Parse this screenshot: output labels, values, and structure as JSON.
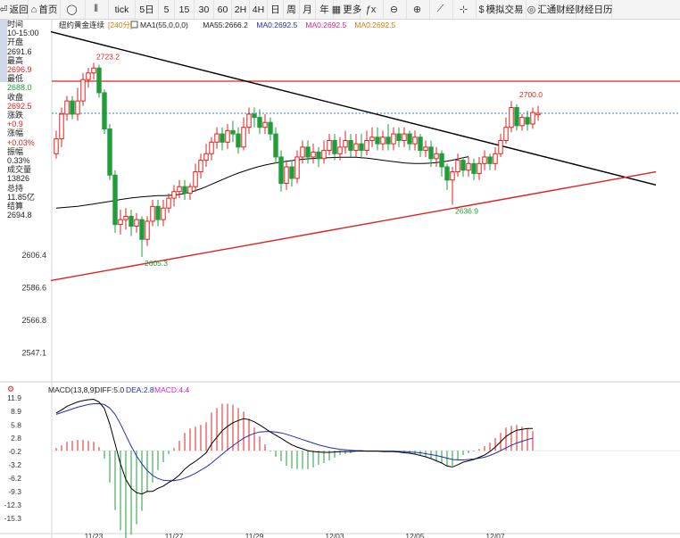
{
  "toolbar": {
    "items": [
      {
        "label": "返回",
        "icon": "back-arrow-icon"
      },
      {
        "label": "首页",
        "icon": "home-icon"
      },
      {
        "label": "",
        "icon": "refresh-circle-icon"
      },
      {
        "label": "",
        "icon": "candlestick-icon"
      },
      {
        "label": "tick",
        "icon": ""
      },
      {
        "label": "5日",
        "icon": ""
      },
      {
        "label": "5",
        "icon": ""
      },
      {
        "label": "15",
        "icon": ""
      },
      {
        "label": "30",
        "icon": ""
      },
      {
        "label": "60",
        "icon": ""
      },
      {
        "label": "2H",
        "icon": ""
      },
      {
        "label": "4H",
        "icon": ""
      },
      {
        "label": "日",
        "icon": ""
      },
      {
        "label": "周",
        "icon": ""
      },
      {
        "label": "月",
        "icon": ""
      },
      {
        "label": "年",
        "icon": ""
      },
      {
        "label": "更多",
        "icon": "grid-icon"
      },
      {
        "label": "",
        "icon": "function-icon"
      },
      {
        "label": "",
        "icon": "zoom-out-icon"
      },
      {
        "label": "",
        "icon": "zoom-in-icon"
      },
      {
        "label": "",
        "icon": "draw-line-icon"
      },
      {
        "label": "",
        "icon": "crosshair-icon"
      },
      {
        "label": "模拟交易",
        "icon": "dollar-icon"
      },
      {
        "label": "汇通财经",
        "icon": "globe-icon"
      },
      {
        "label": "财经日历",
        "icon": ""
      }
    ]
  },
  "side_panel": [
    {
      "label": "时间",
      "value": "10-15:00",
      "color": "#222"
    },
    {
      "label": "开盘",
      "value": "2691.6",
      "color": "#222"
    },
    {
      "label": "最高",
      "value": "2696.9",
      "color": "#e02020"
    },
    {
      "label": "最低",
      "value": "2688.0",
      "color": "#1f9d3a"
    },
    {
      "label": "收盘",
      "value": "2692.5",
      "color": "#e02020"
    },
    {
      "label": "涨跌",
      "value": "+0.9",
      "color": "#e02020"
    },
    {
      "label": "涨幅",
      "value": "+0.03%",
      "color": "#e02020"
    },
    {
      "label": "振幅",
      "value": "0.33%",
      "color": "#222"
    },
    {
      "label": "成交量",
      "value": "13826",
      "color": "#222"
    },
    {
      "label": "总持",
      "value": "11.85亿",
      "color": "#222"
    },
    {
      "label": "结算",
      "value": "2694.8",
      "color": "#222"
    }
  ],
  "legend": {
    "symbol": "纽约黄金连续",
    "period": "[240分]",
    "ma1": "MA1(55,0,0,0)",
    "ma55": "MA55:2666.2",
    "ma0a": "MA0:2692.5",
    "ma0b": "MA0:2692.5",
    "ma0c": "MA0:2692.5"
  },
  "macd_legend": {
    "title": "MACD(13,8,9)",
    "diff": "DIFF:5.0",
    "dea": "DEA:2.8",
    "macd": "MACD:4.4"
  },
  "colors": {
    "up": "#e02020",
    "down": "#1f9d3a",
    "ma": "#000000",
    "resistance": "#e02020",
    "trendline_down": "#000000",
    "trendline_up": "#e02020",
    "diff": "#000000",
    "dea": "#1f2fb0",
    "last_price": "#3a78d8"
  },
  "chart_data": {
    "type": "candlestick",
    "price_axis": {
      "ticks": [
        2606.4,
        2586.6,
        2566.8,
        2547.1
      ]
    },
    "x_labels": [
      {
        "label": "11/23",
        "index": 7
      },
      {
        "label": "11/27",
        "index": 22
      },
      {
        "label": "11/29",
        "index": 37
      },
      {
        "label": "12/03",
        "index": 52
      },
      {
        "label": "12/05",
        "index": 67
      },
      {
        "label": "12/07",
        "index": 82
      }
    ],
    "annotations": [
      {
        "text": "2723.2",
        "index": 7,
        "value": 2723.2,
        "type": "high"
      },
      {
        "text": "2605.3",
        "index": 16,
        "value": 2605.3,
        "type": "low"
      },
      {
        "text": "2636.9",
        "index": 74,
        "value": 2636.9,
        "type": "low"
      },
      {
        "text": "2700.0",
        "index": 86,
        "value": 2700.0,
        "type": "high"
      }
    ],
    "resistance_level": 2712.0,
    "last_price": 2692.5,
    "trendlines": [
      {
        "name": "down",
        "from": {
          "index": -1,
          "value": 2742
        },
        "to": {
          "index": 112,
          "value": 2649
        }
      },
      {
        "name": "up",
        "from": {
          "index": -1,
          "value": 2591
        },
        "to": {
          "index": 112,
          "value": 2657
        }
      }
    ],
    "candles": [
      [
        2668,
        2677,
        2665,
        2682
      ],
      [
        2677,
        2692,
        2672,
        2696
      ],
      [
        2692,
        2700,
        2688,
        2703
      ],
      [
        2700,
        2692,
        2689,
        2703
      ],
      [
        2692,
        2700,
        2688,
        2708
      ],
      [
        2700,
        2713,
        2697,
        2717
      ],
      [
        2713,
        2717,
        2708,
        2720
      ],
      [
        2717,
        2720,
        2713,
        2723.2
      ],
      [
        2720,
        2705,
        2702,
        2722
      ],
      [
        2705,
        2683,
        2680,
        2707
      ],
      [
        2683,
        2655,
        2652,
        2686
      ],
      [
        2655,
        2625,
        2620,
        2658
      ],
      [
        2625,
        2628,
        2619,
        2634
      ],
      [
        2628,
        2630,
        2622,
        2635
      ],
      [
        2630,
        2624,
        2618,
        2634
      ],
      [
        2624,
        2628,
        2620,
        2632
      ],
      [
        2628,
        2616,
        2605.3,
        2630
      ],
      [
        2616,
        2627,
        2612,
        2630
      ],
      [
        2627,
        2636,
        2624,
        2640
      ],
      [
        2636,
        2628,
        2624,
        2640
      ],
      [
        2628,
        2635,
        2624,
        2640
      ],
      [
        2635,
        2641,
        2632,
        2644
      ],
      [
        2641,
        2645,
        2636,
        2649
      ],
      [
        2645,
        2648,
        2641,
        2652
      ],
      [
        2648,
        2644,
        2640,
        2652
      ],
      [
        2644,
        2648,
        2640,
        2650
      ],
      [
        2648,
        2657,
        2645,
        2662
      ],
      [
        2657,
        2664,
        2653,
        2668
      ],
      [
        2664,
        2668,
        2660,
        2674
      ],
      [
        2668,
        2675,
        2664,
        2678
      ],
      [
        2675,
        2680,
        2671,
        2684
      ],
      [
        2680,
        2675,
        2670,
        2684
      ],
      [
        2675,
        2682,
        2671,
        2686
      ],
      [
        2682,
        2680,
        2675,
        2688
      ],
      [
        2680,
        2672,
        2668,
        2684
      ],
      [
        2672,
        2684,
        2670,
        2690
      ],
      [
        2684,
        2692,
        2680,
        2696
      ],
      [
        2692,
        2690,
        2684,
        2696
      ],
      [
        2690,
        2684,
        2680,
        2695
      ],
      [
        2684,
        2687,
        2680,
        2692
      ],
      [
        2687,
        2680,
        2676,
        2690
      ],
      [
        2680,
        2666,
        2662,
        2684
      ],
      [
        2666,
        2650,
        2645,
        2670
      ],
      [
        2650,
        2660,
        2646,
        2664
      ],
      [
        2660,
        2653,
        2648,
        2664
      ],
      [
        2653,
        2666,
        2650,
        2670
      ],
      [
        2666,
        2672,
        2662,
        2676
      ],
      [
        2672,
        2666,
        2662,
        2676
      ],
      [
        2666,
        2669,
        2662,
        2674
      ],
      [
        2669,
        2665,
        2660,
        2672
      ],
      [
        2665,
        2670,
        2662,
        2676
      ],
      [
        2670,
        2676,
        2667,
        2680
      ],
      [
        2676,
        2668,
        2664,
        2680
      ],
      [
        2668,
        2672,
        2664,
        2678
      ],
      [
        2672,
        2676,
        2668,
        2682
      ],
      [
        2676,
        2670,
        2666,
        2680
      ],
      [
        2670,
        2674,
        2666,
        2680
      ],
      [
        2674,
        2670,
        2665,
        2680
      ],
      [
        2670,
        2676,
        2667,
        2682
      ],
      [
        2676,
        2678,
        2672,
        2684
      ],
      [
        2678,
        2674,
        2670,
        2684
      ],
      [
        2674,
        2678,
        2670,
        2682
      ],
      [
        2678,
        2674,
        2670,
        2686
      ],
      [
        2674,
        2680,
        2670,
        2684
      ],
      [
        2680,
        2676,
        2672,
        2684
      ],
      [
        2676,
        2680,
        2672,
        2684
      ],
      [
        2680,
        2674,
        2670,
        2682
      ],
      [
        2674,
        2678,
        2670,
        2682
      ],
      [
        2678,
        2670,
        2666,
        2680
      ],
      [
        2670,
        2672,
        2666,
        2676
      ],
      [
        2672,
        2665,
        2660,
        2676
      ],
      [
        2665,
        2668,
        2660,
        2672
      ],
      [
        2668,
        2660,
        2654,
        2670
      ],
      [
        2660,
        2652,
        2646,
        2662
      ],
      [
        2652,
        2657,
        2636.9,
        2660
      ],
      [
        2657,
        2664,
        2654,
        2668
      ],
      [
        2664,
        2658,
        2654,
        2666
      ],
      [
        2658,
        2662,
        2654,
        2666
      ],
      [
        2662,
        2656,
        2652,
        2665
      ],
      [
        2656,
        2662,
        2652,
        2666
      ],
      [
        2662,
        2666,
        2658,
        2670
      ],
      [
        2666,
        2662,
        2658,
        2668
      ],
      [
        2662,
        2668,
        2658,
        2672
      ],
      [
        2668,
        2676,
        2666,
        2680
      ],
      [
        2676,
        2684,
        2674,
        2690
      ],
      [
        2684,
        2696,
        2681,
        2700.0
      ],
      [
        2696,
        2685,
        2682,
        2698
      ],
      [
        2685,
        2690,
        2682,
        2692
      ],
      [
        2690,
        2686,
        2682,
        2694
      ],
      [
        2686,
        2693,
        2683,
        2696
      ],
      [
        2691.6,
        2692.5,
        2688,
        2696.9
      ]
    ],
    "ma55": [
      2635,
      2635.2,
      2635.5,
      2635.8,
      2636.1,
      2636.5,
      2637,
      2637.5,
      2638,
      2638.5,
      2639,
      2639.6,
      2640.2,
      2640.7,
      2641.1,
      2641.5,
      2641.8,
      2642.1,
      2642.3,
      2642.5,
      2642.6,
      2642.7,
      2642.9,
      2643.3,
      2643.8,
      2644.6,
      2645.6,
      2646.7,
      2648,
      2649.4,
      2650.8,
      2652.2,
      2653.6,
      2655,
      2656.2,
      2657.3,
      2658.4,
      2659.4,
      2660.3,
      2661.1,
      2661.8,
      2662.4,
      2662.9,
      2663.4,
      2663.8,
      2664.2,
      2664.6,
      2664.9,
      2665.1,
      2665.3,
      2665.5,
      2665.6,
      2665.7,
      2665.8,
      2665.8,
      2665.8,
      2665.8,
      2665.6,
      2665.3,
      2664.9,
      2664.5,
      2664,
      2663.6,
      2663.2,
      2662.8,
      2662.4,
      2662.2,
      2662,
      2662,
      2662.1,
      2662.3,
      2662.6,
      2663,
      2663.5,
      2664.1,
      2664.8,
      2665.6,
      2666.2
    ],
    "ma55_start_index": 12,
    "macd": {
      "axis_ticks": [
        11.9,
        8.9,
        5.8,
        2.8,
        -0.2,
        -3.2,
        -6.2,
        -9.3,
        -12.3,
        -15.3
      ],
      "diff": [
        8.5,
        9.2,
        10,
        10.5,
        11,
        11.3,
        11.5,
        11.6,
        11,
        9.5,
        6,
        1.5,
        -3,
        -6.5,
        -8.5,
        -9.5,
        -9.8,
        -9.2,
        -9.2,
        -8.5,
        -8,
        -7.2,
        -6.5,
        -5.5,
        -4.2,
        -3.2,
        -2.4,
        -1.5,
        -0.5,
        1.5,
        3,
        4.5,
        5.5,
        6.3,
        6.8,
        7.2,
        7.0,
        6.5,
        5.8,
        5.0,
        4.2,
        3.5,
        2.8,
        2.0,
        1.3,
        0.8,
        0.4,
        0,
        -0.2,
        -0.3,
        -0.4,
        -0.4,
        -0.3,
        -0.2,
        -0.2,
        -0.2,
        -0.1,
        -0.1,
        -0.1,
        -0.1,
        -0.1,
        -0.2,
        -0.2,
        -0.2,
        -0.3,
        -0.5,
        -0.6,
        -0.8,
        -1.1,
        -1.4,
        -1.8,
        -2.3,
        -2.8,
        -3.5,
        -3.7,
        -3.2,
        -2.6,
        -2.3,
        -2.0,
        -1.5,
        -1.0,
        -0.2,
        0.8,
        2.0,
        3.2,
        4.0,
        4.6,
        4.8,
        5.0,
        5.0
      ],
      "dea": [
        8.2,
        8.6,
        9,
        9.4,
        9.8,
        10.1,
        10.4,
        10.6,
        10.6,
        10.4,
        9.6,
        8.2,
        6,
        3.5,
        1,
        -1.2,
        -3,
        -4.5,
        -5.6,
        -6.3,
        -6.7,
        -6.8,
        -6.8,
        -6.6,
        -6.2,
        -5.7,
        -5.1,
        -4.4,
        -3.7,
        -2.8,
        -1.8,
        -0.8,
        0.2,
        1.1,
        2.0,
        2.8,
        3.4,
        3.9,
        4.2,
        4.3,
        4.3,
        4.2,
        4.0,
        3.7,
        3.3,
        2.9,
        2.5,
        2.1,
        1.7,
        1.3,
        1.0,
        0.7,
        0.5,
        0.3,
        0.2,
        0.1,
        0,
        0,
        -0.1,
        -0.1,
        -0.1,
        -0.1,
        -0.1,
        -0.1,
        -0.2,
        -0.2,
        -0.3,
        -0.4,
        -0.5,
        -0.7,
        -0.9,
        -1.1,
        -1.4,
        -1.7,
        -2.0,
        -2.1,
        -2.1,
        -2.0,
        -1.9,
        -1.7,
        -1.5,
        -1.1,
        -0.6,
        0,
        0.6,
        1.2,
        1.7,
        2.1,
        2.5,
        2.8
      ],
      "hist": [
        0.6,
        1.2,
        2,
        2.2,
        2.4,
        2.4,
        2.2,
        2,
        0.8,
        -1.8,
        -7.2,
        -13.4,
        -18,
        -20,
        -19,
        -16.6,
        -13.6,
        -9.4,
        -7.2,
        -4.4,
        -2.6,
        -0.8,
        0.6,
        2.2,
        4,
        5,
        5.4,
        5.8,
        6.4,
        8.6,
        9.6,
        10.6,
        10.6,
        10.4,
        9.6,
        8.8,
        7.2,
        5.2,
        3.2,
        1.4,
        -0.2,
        -1.4,
        -2.4,
        -3.4,
        -4,
        -4.2,
        -4.2,
        -4.2,
        -3.8,
        -3.2,
        -2.8,
        -2.2,
        -1.6,
        -1,
        -0.8,
        -0.6,
        -0.2,
        -0.2,
        0,
        0,
        0,
        -0.2,
        -0.2,
        -0.2,
        -0.2,
        -0.6,
        -0.6,
        -0.8,
        -1.2,
        -1.4,
        -1.8,
        -2.4,
        -2.8,
        -3.6,
        -3.4,
        -2.2,
        -1,
        -0.6,
        -0.2,
        0.4,
        1,
        1.8,
        2.8,
        4,
        5.2,
        5.6,
        5.8,
        5.4,
        5,
        4.4
      ]
    }
  }
}
